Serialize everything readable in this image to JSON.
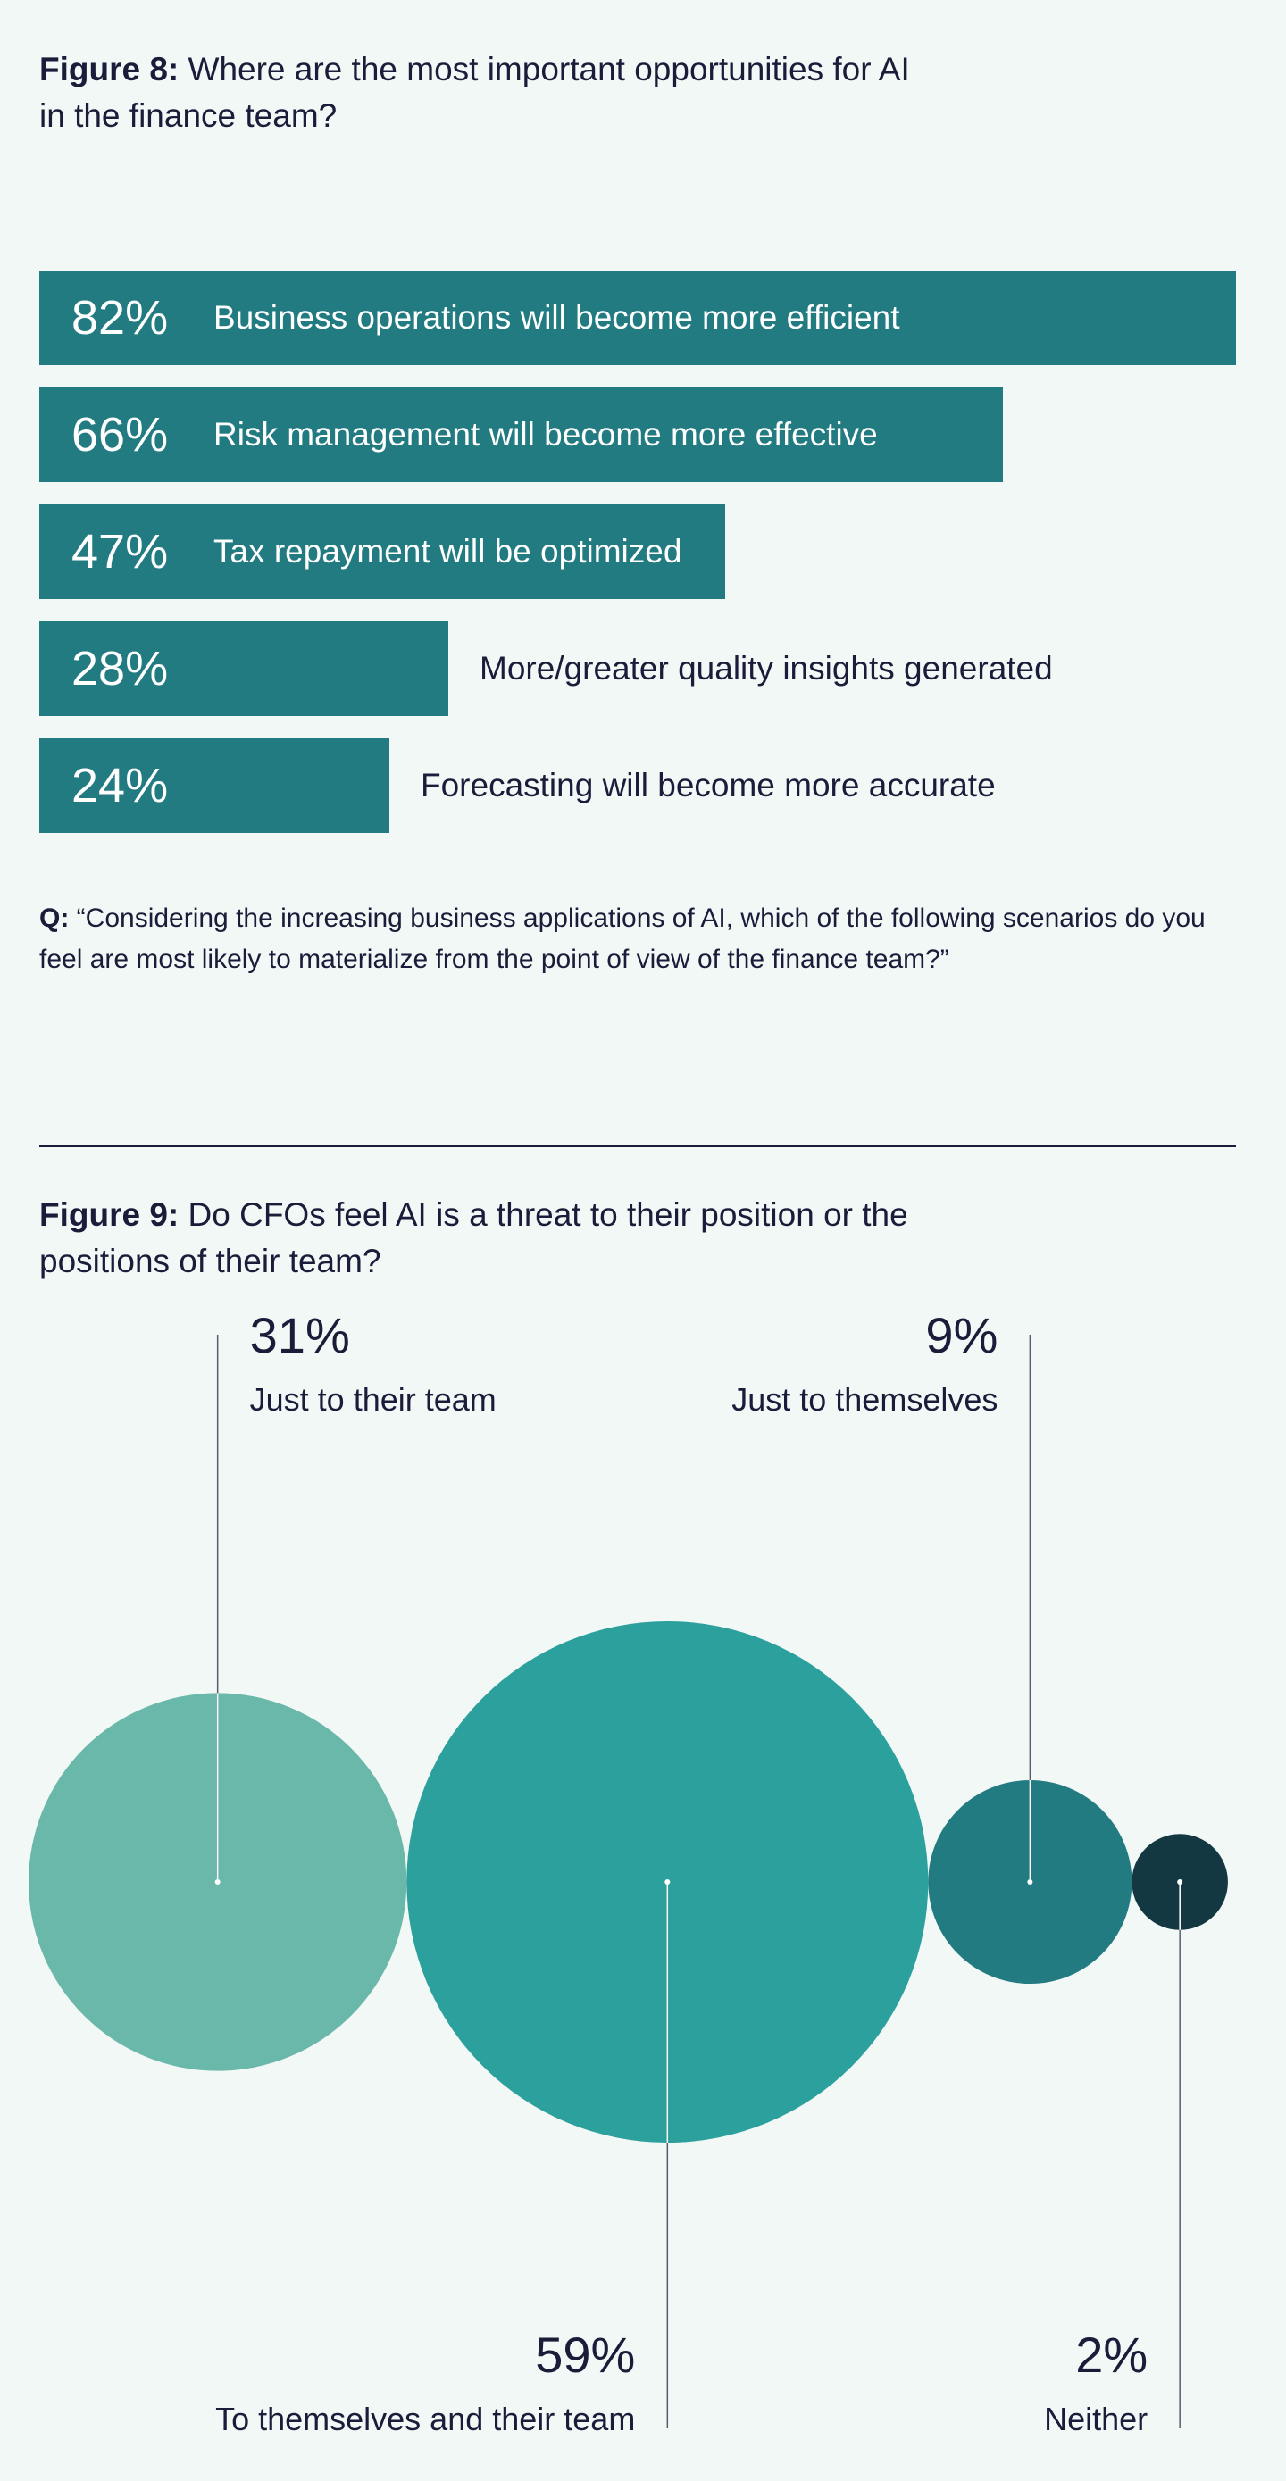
{
  "figure8": {
    "title_bold": "Figure 8:",
    "title_rest": " Where are the most important opportunities for AI in the finance team?",
    "question_bold": "Q:",
    "question_text": " “Considering the increasing business applications of AI, which of the following scenarios do you feel are most likely to materialize from the point of view of the finance team?”"
  },
  "figure9": {
    "title_bold": "Figure 9:",
    "title_rest": " Do CFOs feel AI is a threat to their position or the positions of their team?"
  },
  "chart_data": [
    {
      "type": "bar",
      "orientation": "horizontal",
      "categories": [
        "Business operations will become more efficient",
        "Risk management will become more effective",
        "Tax repayment will be optimized",
        "More/greater quality insights generated",
        "Forecasting will become more accurate"
      ],
      "values": [
        82,
        66,
        47,
        28,
        24
      ],
      "value_labels": [
        "82%",
        "66%",
        "47%",
        "28%",
        "24%"
      ],
      "xlim": [
        0,
        82
      ],
      "color": "#237b82"
    },
    {
      "type": "bubble",
      "categories": [
        "Just to their team",
        "To themselves and their team",
        "Just to themselves",
        "Neither"
      ],
      "values": [
        31,
        59,
        9,
        2
      ],
      "value_labels": [
        "31%",
        "59%",
        "9%",
        "2%"
      ],
      "colors": [
        "#69b8a9",
        "#2ca09d",
        "#237b82",
        "#133842"
      ]
    }
  ]
}
